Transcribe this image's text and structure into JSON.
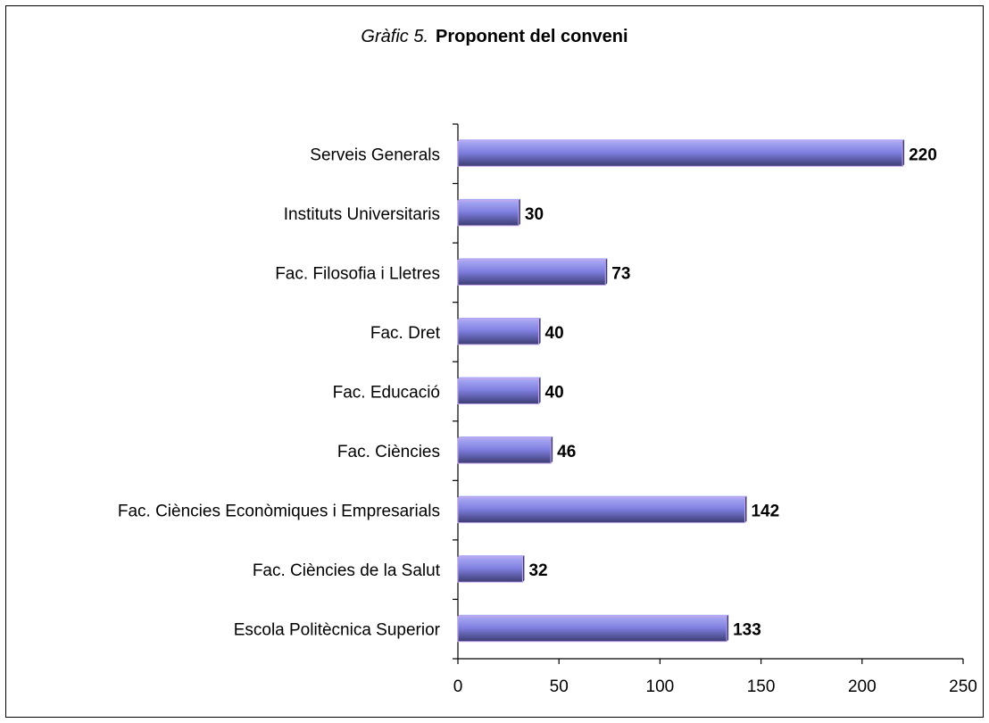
{
  "chart_data": {
    "type": "bar",
    "orientation": "horizontal",
    "title_prefix": "Gràfic 5.",
    "title": "Proponent del conveni",
    "xlabel": "",
    "ylabel": "",
    "categories": [
      "Serveis Generals",
      "Instituts Universitaris",
      "Fac. Filosofia i Lletres",
      "Fac. Dret",
      "Fac. Educació",
      "Fac. Ciències",
      "Fac. Ciències Econòmiques i Empresarials",
      "Fac. Ciències de la Salut",
      "Escola Politècnica Superior"
    ],
    "values": [
      220,
      30,
      73,
      40,
      40,
      46,
      142,
      32,
      133
    ],
    "xlim": [
      0,
      250
    ],
    "xticks": [
      0,
      50,
      100,
      150,
      200,
      250
    ],
    "grid": false,
    "legend": "none",
    "colors": {
      "bar_light": "#a9a9f4",
      "bar_mid": "#7f7fe0",
      "bar_dark": "#3c3c72",
      "bar_edge": "#c4a6ee"
    }
  }
}
